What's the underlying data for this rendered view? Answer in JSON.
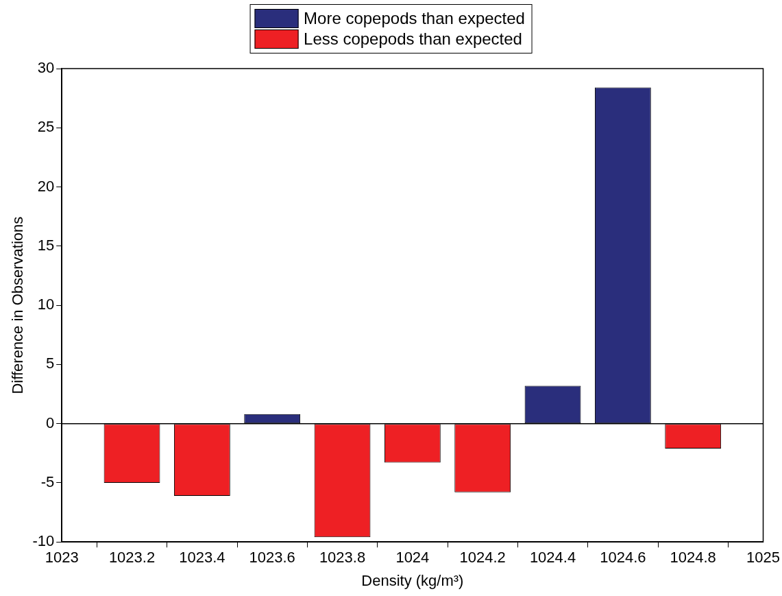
{
  "chart_data": {
    "type": "bar",
    "xlabel": "Density (kg/m³)",
    "ylabel": "Difference in Observations",
    "x": [
      1023.2,
      1023.4,
      1023.6,
      1023.8,
      1024,
      1024.2,
      1024.4,
      1024.6,
      1024.8
    ],
    "series": [
      {
        "name": "More copepods than expected",
        "color": "#2a2e7c",
        "values": [
          null,
          null,
          0.8,
          null,
          null,
          null,
          3.2,
          28.4,
          null
        ]
      },
      {
        "name": "Less copepods than expected",
        "color": "#ee2024",
        "values": [
          -5.0,
          -6.1,
          null,
          -9.6,
          -3.3,
          -5.8,
          null,
          null,
          -2.1
        ]
      }
    ],
    "xlim": [
      1023,
      1025
    ],
    "xticks": [
      1023,
      1023.2,
      1023.4,
      1023.6,
      1023.8,
      1024,
      1024.2,
      1024.4,
      1024.6,
      1024.8,
      1025
    ],
    "ylim": [
      -10,
      30
    ],
    "yticks": [
      -10,
      -5,
      0,
      5,
      10,
      15,
      20,
      25,
      30
    ],
    "ref_lines": [
      {
        "axis": "y",
        "value": 0,
        "color": "#000000"
      }
    ],
    "grid": false,
    "legend": "top"
  }
}
